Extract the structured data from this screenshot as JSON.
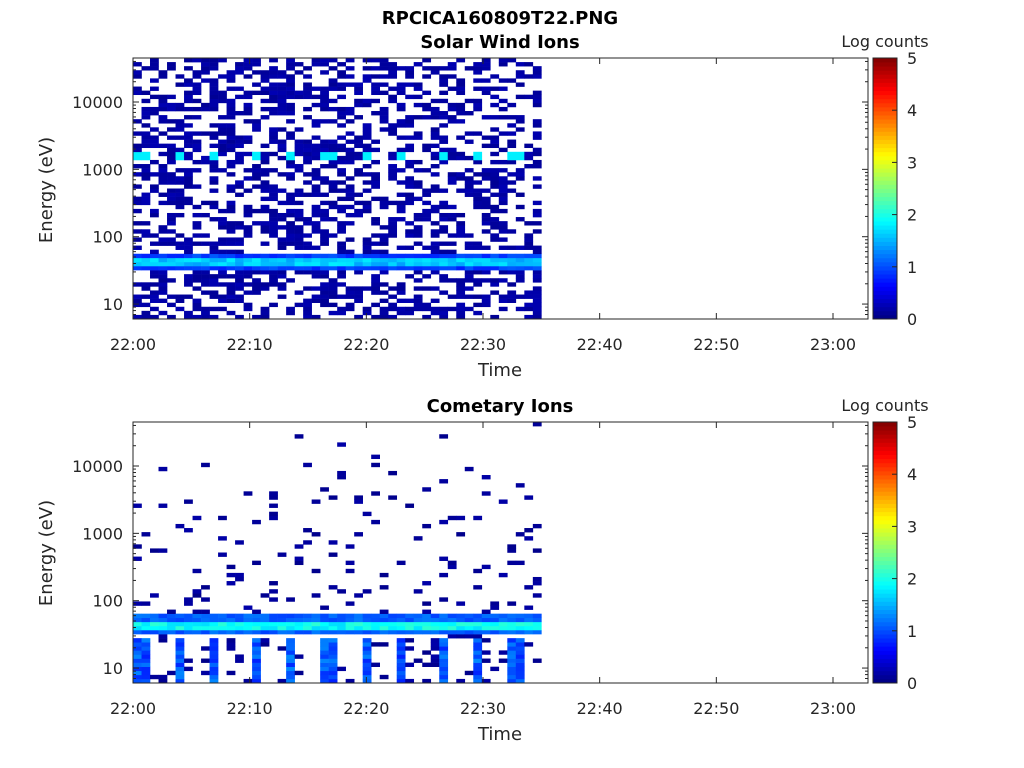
{
  "figure": {
    "title": "RPCICA160809T22.PNG"
  },
  "chart_data": [
    {
      "type": "heatmap",
      "title": "Solar Wind Ions",
      "xlabel": "Time",
      "ylabel": "Energy (eV)",
      "x_ticks": [
        "22:00",
        "22:10",
        "22:20",
        "22:30",
        "22:40",
        "22:50",
        "23:00"
      ],
      "x_range": [
        "22:00",
        "23:03"
      ],
      "y_scale": "log",
      "y_ticks": [
        10,
        100,
        1000,
        10000
      ],
      "y_tick_labels": [
        "10",
        "100",
        "1000",
        "10000"
      ],
      "y_range": [
        6,
        45000
      ],
      "data_time_range": [
        "22:00",
        "22:35"
      ],
      "colorbar": {
        "label": "Log counts",
        "ticks": [
          0,
          1,
          2,
          3,
          4,
          5
        ],
        "range": [
          0,
          5
        ],
        "colormap": "jet"
      },
      "features": [
        {
          "energy_eV": 42,
          "level": 1.4
        },
        {
          "energy_eV": 1500,
          "level": 1.8,
          "interval_min": 3.2
        }
      ],
      "background_level": 0.1,
      "seed": 7
    },
    {
      "type": "heatmap",
      "title": "Cometary Ions",
      "xlabel": "Time",
      "ylabel": "Energy (eV)",
      "x_ticks": [
        "22:00",
        "22:10",
        "22:20",
        "22:30",
        "22:40",
        "22:50",
        "23:00"
      ],
      "x_range": [
        "22:00",
        "23:03"
      ],
      "y_scale": "log",
      "y_ticks": [
        10,
        100,
        1000,
        10000
      ],
      "y_tick_labels": [
        "10",
        "100",
        "1000",
        "10000"
      ],
      "y_range": [
        6,
        45000
      ],
      "data_time_range": [
        "22:00",
        "22:35"
      ],
      "colorbar": {
        "label": "Log counts",
        "ticks": [
          0,
          1,
          2,
          3,
          4,
          5
        ],
        "range": [
          0,
          5
        ],
        "colormap": "jet"
      },
      "features": [
        {
          "energy_eV": 45,
          "level": 1.7
        },
        {
          "energy_eV": 12,
          "level": 1.3,
          "interval_min": 3.2
        }
      ],
      "background_level": 0.05,
      "seed": 13
    }
  ]
}
